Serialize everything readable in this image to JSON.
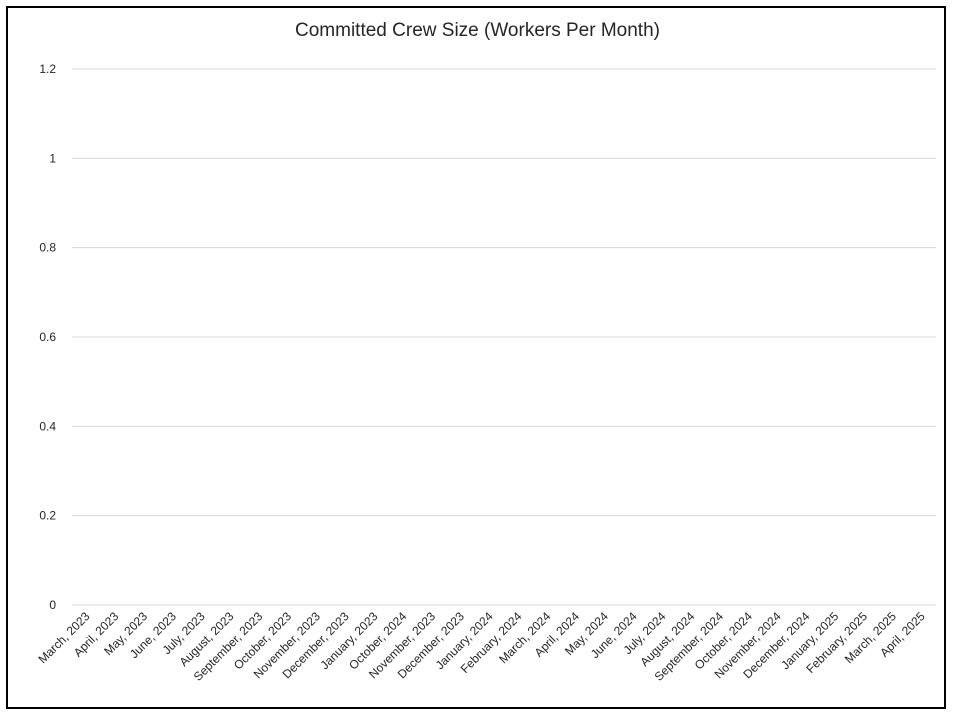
{
  "chart_data": {
    "type": "line",
    "title": "Committed Crew Size (Workers Per Month)",
    "xlabel": "",
    "ylabel": "",
    "categories": [
      "March, 2023",
      "April, 2023",
      "May, 2023",
      "June, 2023",
      "July, 2023",
      "August, 2023",
      "September, 2023",
      "October, 2023",
      "November, 2023",
      "December, 2023",
      "January, 2023",
      "October, 2024",
      "November, 2023",
      "December, 2023",
      "January, 2024",
      "February, 2024",
      "March, 2024",
      "April, 2024",
      "May, 2024",
      "June, 2024",
      "July, 2024",
      "August, 2024",
      "September, 2024",
      "October, 2024",
      "November, 2024",
      "December, 2024",
      "January, 2025",
      "February, 2025",
      "March, 2025",
      "April, 2025"
    ],
    "yticks": [
      "0",
      "0.2",
      "0.4",
      "0.6",
      "0.8",
      "1",
      "1.2"
    ],
    "ylim": [
      0,
      1.2
    ],
    "series": [],
    "grid": true,
    "legend": "none",
    "colors": {
      "grid": "#d9d9d9",
      "text": "#262626",
      "frame": "#000000"
    }
  }
}
